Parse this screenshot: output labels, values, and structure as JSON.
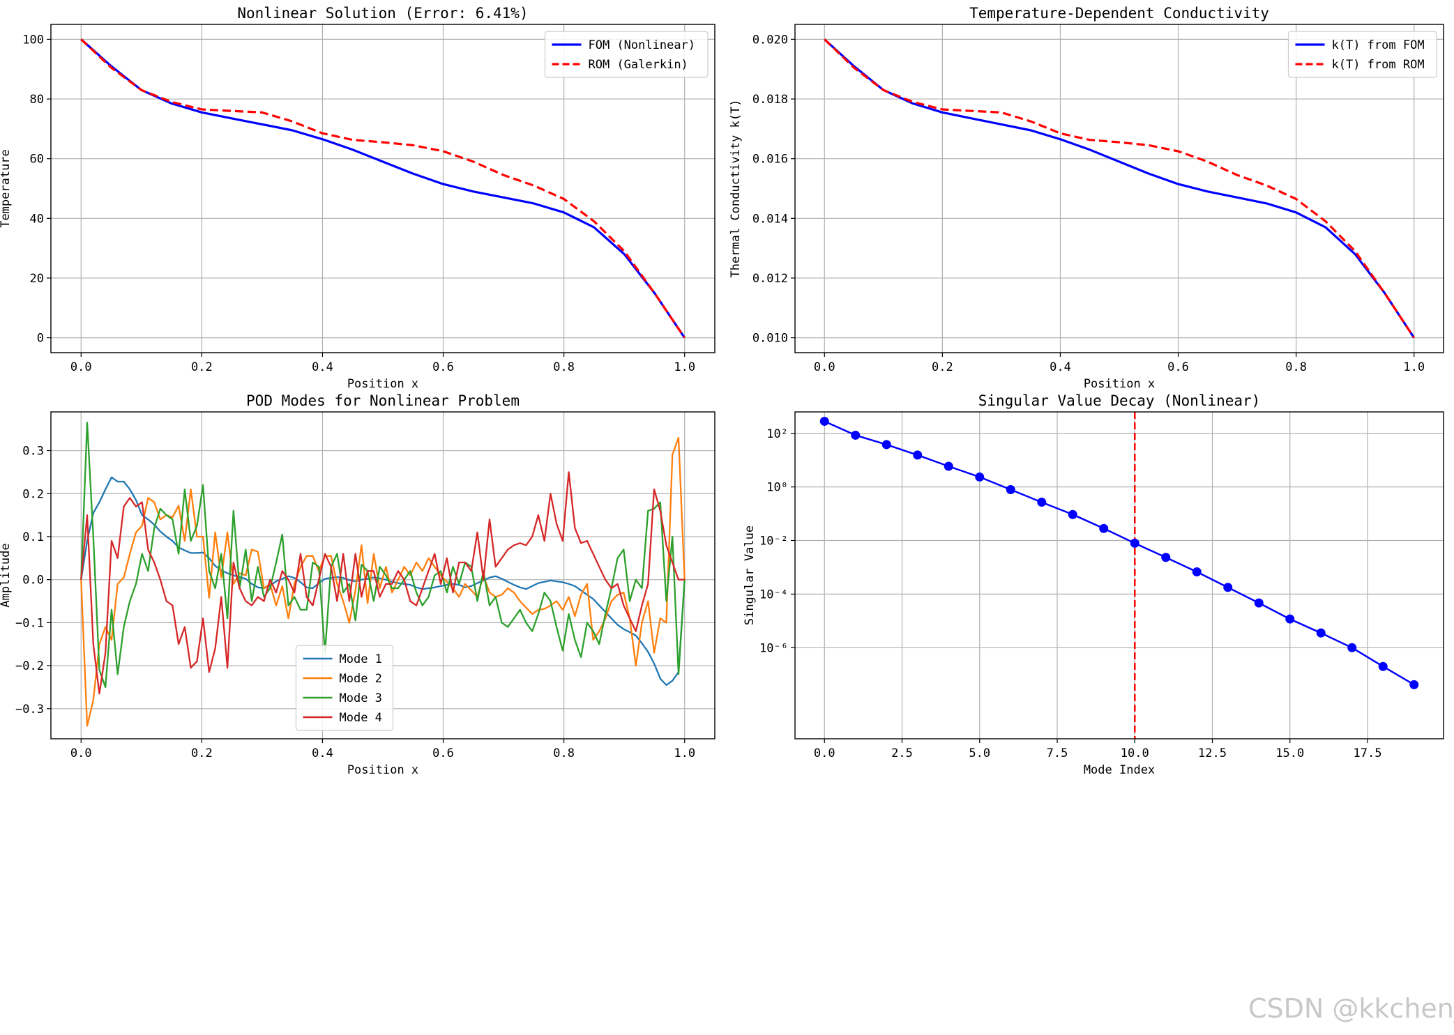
{
  "watermark": "CSDN @kkchenji",
  "chart_data": [
    {
      "type": "line",
      "title": "Nonlinear Solution (Error: 6.41%)",
      "xlabel": "Position x",
      "ylabel": "Temperature",
      "xlim": [
        -0.05,
        1.05
      ],
      "ylim": [
        -5,
        105
      ],
      "grid": true,
      "xticks": [
        0.0,
        0.2,
        0.4,
        0.6,
        0.8,
        1.0
      ],
      "xtick_labels": [
        "0.0",
        "0.2",
        "0.4",
        "0.6",
        "0.8",
        "1.0"
      ],
      "yticks": [
        0,
        20,
        40,
        60,
        80,
        100
      ],
      "ytick_labels": [
        "0",
        "20",
        "40",
        "60",
        "80",
        "100"
      ],
      "legend": "upper right",
      "series": [
        {
          "name": "FOM (Nonlinear)",
          "color": "#0000ff",
          "style": "solid",
          "x": [
            0,
            0.05,
            0.1,
            0.15,
            0.2,
            0.25,
            0.3,
            0.35,
            0.4,
            0.45,
            0.5,
            0.55,
            0.6,
            0.65,
            0.7,
            0.75,
            0.8,
            0.85,
            0.9,
            0.95,
            1.0
          ],
          "y": [
            100,
            91,
            83,
            78.5,
            75.5,
            73.5,
            71.5,
            69.5,
            66.5,
            63,
            59,
            55,
            51.5,
            49,
            47,
            45,
            42,
            37,
            28,
            15,
            0
          ]
        },
        {
          "name": "ROM (Galerkin)",
          "color": "#ff0000",
          "style": "dashed",
          "x": [
            0,
            0.05,
            0.1,
            0.15,
            0.2,
            0.25,
            0.3,
            0.35,
            0.4,
            0.45,
            0.5,
            0.55,
            0.6,
            0.65,
            0.7,
            0.75,
            0.8,
            0.85,
            0.9,
            0.95,
            1.0
          ],
          "y": [
            100,
            90.5,
            83,
            79,
            76.5,
            76,
            75.5,
            72.5,
            68.5,
            66.3,
            65.5,
            64.5,
            62.5,
            59,
            54.5,
            51,
            46.5,
            39,
            29,
            15,
            0
          ]
        }
      ]
    },
    {
      "type": "line",
      "title": "Temperature-Dependent Conductivity",
      "xlabel": "Position x",
      "ylabel": "Thermal Conductivity k(T)",
      "xlim": [
        -0.05,
        1.05
      ],
      "ylim": [
        0.0095,
        0.0205
      ],
      "grid": true,
      "xticks": [
        0.0,
        0.2,
        0.4,
        0.6,
        0.8,
        1.0
      ],
      "xtick_labels": [
        "0.0",
        "0.2",
        "0.4",
        "0.6",
        "0.8",
        "1.0"
      ],
      "yticks": [
        0.01,
        0.012,
        0.014,
        0.016,
        0.018,
        0.02
      ],
      "ytick_labels": [
        "0.010",
        "0.012",
        "0.014",
        "0.016",
        "0.018",
        "0.020"
      ],
      "legend": "upper right",
      "series": [
        {
          "name": "k(T) from FOM",
          "color": "#0000ff",
          "style": "solid",
          "x": [
            0,
            0.05,
            0.1,
            0.15,
            0.2,
            0.25,
            0.3,
            0.35,
            0.4,
            0.45,
            0.5,
            0.55,
            0.6,
            0.65,
            0.7,
            0.75,
            0.8,
            0.85,
            0.9,
            0.95,
            1.0
          ],
          "y": [
            0.02,
            0.0191,
            0.0183,
            0.01785,
            0.01755,
            0.01735,
            0.01715,
            0.01695,
            0.01665,
            0.0163,
            0.0159,
            0.0155,
            0.01515,
            0.0149,
            0.0147,
            0.0145,
            0.0142,
            0.0137,
            0.0128,
            0.0115,
            0.01
          ]
        },
        {
          "name": "k(T) from ROM",
          "color": "#ff0000",
          "style": "dashed",
          "x": [
            0,
            0.05,
            0.1,
            0.15,
            0.2,
            0.25,
            0.3,
            0.35,
            0.4,
            0.45,
            0.5,
            0.55,
            0.6,
            0.65,
            0.7,
            0.75,
            0.8,
            0.85,
            0.9,
            0.95,
            1.0
          ],
          "y": [
            0.02,
            0.01905,
            0.0183,
            0.0179,
            0.01765,
            0.0176,
            0.01755,
            0.01725,
            0.01685,
            0.01663,
            0.01655,
            0.01645,
            0.01625,
            0.0159,
            0.01545,
            0.0151,
            0.01465,
            0.0139,
            0.0129,
            0.0115,
            0.01
          ]
        }
      ]
    },
    {
      "type": "line",
      "title": "POD Modes for Nonlinear Problem",
      "xlabel": "Position x",
      "ylabel": "Amplitude",
      "xlim": [
        -0.05,
        1.05
      ],
      "ylim": [
        -0.37,
        0.39
      ],
      "grid": true,
      "xticks": [
        0.0,
        0.2,
        0.4,
        0.6,
        0.8,
        1.0
      ],
      "xtick_labels": [
        "0.0",
        "0.2",
        "0.4",
        "0.6",
        "0.8",
        "1.0"
      ],
      "yticks": [
        -0.3,
        -0.2,
        -0.1,
        0.0,
        0.1,
        0.2,
        0.3
      ],
      "ytick_labels": [
        "−0.3",
        "−0.2",
        "−0.1",
        "0.0",
        "0.1",
        "0.2",
        "0.3"
      ],
      "legend": "lower center",
      "x_start": 0.0,
      "x_step": 0.010101,
      "series": [
        {
          "name": "Mode 1",
          "color": "#1f77b4",
          "y": [
            0.0,
            0.09,
            0.155,
            0.18,
            0.21,
            0.238,
            0.228,
            0.228,
            0.21,
            0.185,
            0.15,
            0.14,
            0.128,
            0.112,
            0.1,
            0.09,
            0.075,
            0.068,
            0.062,
            0.062,
            0.063,
            0.05,
            0.032,
            0.022,
            0.015,
            0.01,
            0.006,
            0.002,
            -0.01,
            -0.018,
            -0.02,
            -0.014,
            -0.004,
            0.002,
            0.008,
            0.004,
            -0.006,
            -0.018,
            -0.02,
            -0.008,
            0.002,
            0.004,
            0.006,
            0.004,
            -0.001,
            -0.004,
            0.0,
            0.002,
            0.005,
            0.003,
            0.0,
            -0.005,
            -0.008,
            -0.01,
            -0.012,
            -0.018,
            -0.022,
            -0.02,
            -0.018,
            -0.015,
            -0.012,
            -0.01,
            -0.012,
            -0.018,
            -0.015,
            -0.008,
            -0.002,
            0.005,
            0.008,
            0.002,
            -0.005,
            -0.012,
            -0.018,
            -0.022,
            -0.015,
            -0.008,
            -0.005,
            -0.002,
            -0.004,
            -0.006,
            -0.01,
            -0.015,
            -0.025,
            -0.035,
            -0.045,
            -0.06,
            -0.075,
            -0.09,
            -0.105,
            -0.115,
            -0.122,
            -0.13,
            -0.148,
            -0.168,
            -0.195,
            -0.23,
            -0.245,
            -0.235,
            -0.215,
            0.0
          ]
        },
        {
          "name": "Mode 2",
          "color": "#ff7f0e",
          "y": [
            0.0,
            -0.34,
            -0.28,
            -0.15,
            -0.11,
            -0.14,
            -0.01,
            0.005,
            0.06,
            0.11,
            0.125,
            0.19,
            0.18,
            0.14,
            0.15,
            0.145,
            0.172,
            0.09,
            0.21,
            0.1,
            0.1,
            -0.042,
            0.11,
            0.005,
            0.11,
            -0.01,
            0.015,
            0.01,
            0.07,
            0.065,
            -0.02,
            -0.01,
            -0.06,
            -0.015,
            -0.09,
            -0.01,
            0.03,
            0.055,
            0.055,
            0.02,
            0.055,
            0.055,
            -0.01,
            -0.05,
            -0.1,
            -0.025,
            0.08,
            -0.055,
            0.06,
            -0.02,
            0.03,
            -0.03,
            0.0,
            0.03,
            0.01,
            0.04,
            0.02,
            0.05,
            0.03,
            0.01,
            -0.005,
            -0.02,
            -0.04,
            -0.01,
            -0.025,
            -0.04,
            0.01,
            -0.03,
            -0.04,
            -0.035,
            -0.02,
            -0.03,
            -0.05,
            -0.065,
            -0.08,
            -0.07,
            -0.068,
            -0.06,
            -0.05,
            -0.07,
            -0.04,
            -0.085,
            -0.035,
            -0.01,
            -0.14,
            -0.12,
            -0.09,
            -0.05,
            -0.035,
            -0.03,
            -0.09,
            -0.2,
            -0.1,
            -0.05,
            -0.17,
            -0.09,
            -0.1,
            0.29,
            0.33,
            0.0
          ]
        },
        {
          "name": "Mode 3",
          "color": "#2ca02c",
          "y": [
            0.0,
            0.365,
            0.1,
            -0.21,
            -0.25,
            -0.07,
            -0.22,
            -0.11,
            -0.05,
            -0.01,
            0.06,
            0.02,
            0.12,
            0.165,
            0.15,
            0.14,
            0.06,
            0.21,
            0.09,
            0.125,
            0.22,
            0.02,
            -0.02,
            0.06,
            -0.09,
            0.16,
            -0.02,
            0.07,
            -0.05,
            0.03,
            -0.04,
            -0.02,
            0.04,
            0.105,
            -0.06,
            -0.04,
            -0.07,
            -0.07,
            0.04,
            0.03,
            -0.17,
            0.03,
            0.06,
            -0.03,
            -0.01,
            -0.095,
            0.035,
            0.02,
            -0.05,
            0.03,
            0.01,
            -0.02,
            -0.02,
            0.0,
            0.02,
            -0.03,
            -0.06,
            -0.04,
            0.01,
            0.02,
            -0.03,
            0.03,
            -0.01,
            0.04,
            0.03,
            -0.05,
            0.02,
            -0.06,
            -0.04,
            -0.1,
            -0.11,
            -0.09,
            -0.07,
            -0.1,
            -0.12,
            -0.08,
            -0.03,
            -0.05,
            -0.11,
            -0.165,
            -0.08,
            -0.14,
            -0.18,
            -0.1,
            -0.12,
            -0.15,
            -0.08,
            -0.02,
            0.05,
            0.07,
            -0.05,
            0.0,
            -0.02,
            0.16,
            0.165,
            0.18,
            -0.05,
            0.1,
            -0.22,
            0.0
          ]
        },
        {
          "name": "Mode 4",
          "color": "#d62728",
          "y": [
            0.0,
            0.15,
            -0.15,
            -0.265,
            -0.17,
            0.09,
            0.05,
            0.17,
            0.19,
            0.17,
            0.18,
            0.07,
            0.04,
            0.0,
            -0.05,
            -0.06,
            -0.15,
            -0.11,
            -0.205,
            -0.19,
            -0.09,
            -0.215,
            -0.16,
            -0.04,
            -0.205,
            0.04,
            -0.02,
            -0.05,
            -0.06,
            -0.04,
            -0.05,
            0.0,
            -0.03,
            0.02,
            0.0,
            -0.03,
            0.06,
            -0.04,
            -0.06,
            0.0,
            0.06,
            0.03,
            -0.05,
            0.06,
            -0.05,
            0.06,
            -0.04,
            0.02,
            0.02,
            -0.04,
            -0.01,
            -0.01,
            0.02,
            0.0,
            -0.05,
            -0.06,
            -0.02,
            0.02,
            0.06,
            -0.01,
            0.05,
            -0.03,
            0.04,
            0.04,
            0.02,
            0.11,
            0.0,
            0.14,
            0.03,
            0.05,
            0.07,
            0.08,
            0.085,
            0.08,
            0.1,
            0.15,
            0.09,
            0.2,
            0.13,
            0.09,
            0.25,
            0.12,
            0.085,
            0.09,
            0.06,
            0.03,
            0.0,
            -0.02,
            -0.01,
            -0.06,
            -0.09,
            -0.12,
            -0.06,
            -0.01,
            0.21,
            0.16,
            0.08,
            0.04,
            0.0,
            0.0
          ]
        }
      ]
    },
    {
      "type": "line",
      "title": "Singular Value Decay (Nonlinear)",
      "xlabel": "Mode Index",
      "ylabel": "Singular Value",
      "xscale": "linear",
      "yscale": "log",
      "xlim": [
        -0.95,
        19.95
      ],
      "ylim_log10": [
        -9.4,
        2.8
      ],
      "grid": true,
      "xticks": [
        0,
        2.5,
        5,
        7.5,
        10,
        12.5,
        15,
        17.5
      ],
      "xtick_labels": [
        "0.0",
        "2.5",
        "5.0",
        "7.5",
        "10.0",
        "12.5",
        "15.0",
        "17.5"
      ],
      "yticks_log10": [
        2,
        0,
        -2,
        -4,
        -6
      ],
      "ytick_labels": [
        "10²",
        "10⁰",
        "10⁻²",
        "10⁻⁴",
        "10⁻⁶"
      ],
      "marker": "circle",
      "color": "#0000ff",
      "x": [
        0,
        1,
        2,
        3,
        4,
        5,
        6,
        7,
        8,
        9,
        10,
        11,
        12,
        13,
        14,
        15,
        16,
        17,
        18,
        19
      ],
      "log10_y": [
        2.45,
        1.93,
        1.58,
        1.19,
        0.77,
        0.37,
        -0.1,
        -0.57,
        -1.03,
        -1.55,
        -2.1,
        -2.63,
        -3.17,
        -3.75,
        -4.33,
        -4.93,
        -5.45,
        -6.0,
        -6.7,
        -7.38
      ],
      "vline": {
        "x": 10,
        "color": "#ff0000",
        "style": "dashed"
      }
    }
  ]
}
